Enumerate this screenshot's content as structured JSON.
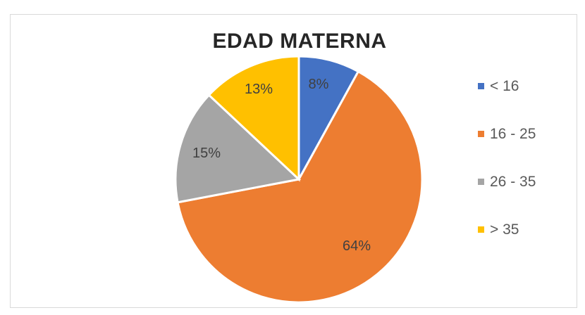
{
  "chart_data": {
    "type": "pie",
    "title": "EDAD MATERNA",
    "categories": [
      "< 16",
      "16 - 25",
      "26 - 35",
      "> 35"
    ],
    "values": [
      8,
      64,
      15,
      13
    ],
    "value_labels": [
      "8%",
      "64%",
      "15%",
      "13%"
    ],
    "colors": [
      "#4472C4",
      "#ED7D31",
      "#A5A5A5",
      "#FFC000"
    ],
    "legend_position": "right"
  }
}
